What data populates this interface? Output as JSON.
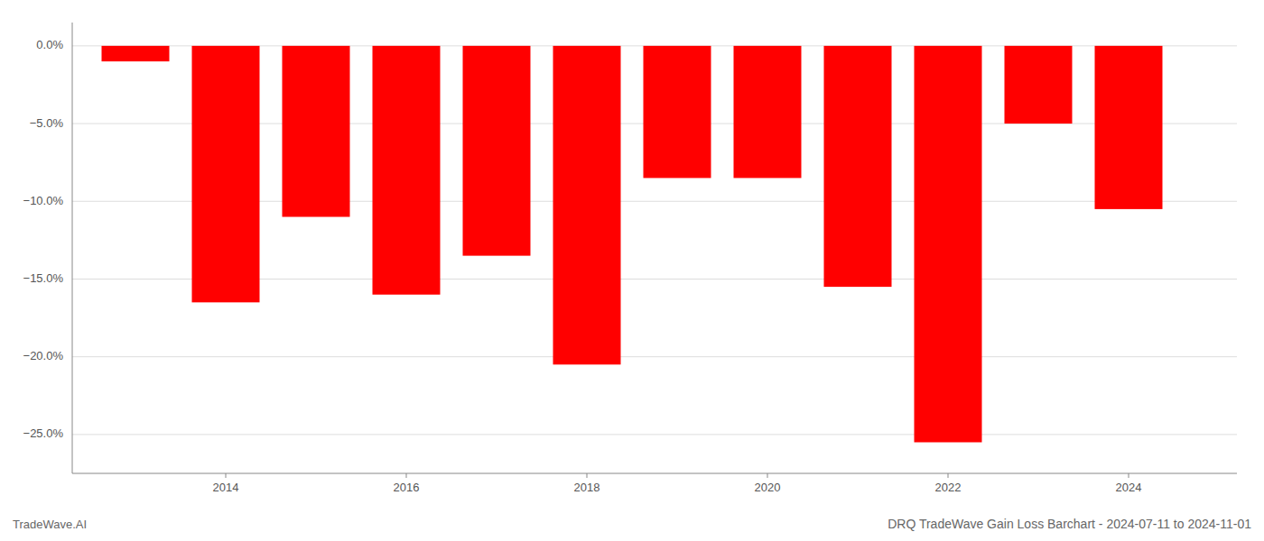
{
  "chart_data": {
    "type": "bar",
    "title": "DRQ TradeWave Gain Loss Barchart - 2024-07-11 to 2024-11-01",
    "annotations": [
      "TradeWave.AI"
    ],
    "x": [
      2013,
      2014,
      2015,
      2016,
      2017,
      2018,
      2019,
      2020,
      2021,
      2022,
      2023,
      2024
    ],
    "values": [
      -1.0,
      -16.5,
      -11.0,
      -16.0,
      -13.5,
      -20.5,
      -8.5,
      -8.5,
      -15.5,
      -25.5,
      -5.0,
      -10.5
    ],
    "color": "#ff0000",
    "xlim": [
      2012.3,
      2025.2
    ],
    "xticks": [
      2014,
      2016,
      2018,
      2020,
      2022,
      2024
    ],
    "ylim": [
      -27.5,
      1.5
    ],
    "yticks": [
      {
        "value": 0.0,
        "label": "0.0%"
      },
      {
        "value": -5.0,
        "label": "−5.0%"
      },
      {
        "value": -10.0,
        "label": "−10.0%"
      },
      {
        "value": -15.0,
        "label": "−15.0%"
      },
      {
        "value": -20.0,
        "label": "−20.0%"
      },
      {
        "value": -25.0,
        "label": "−25.0%"
      }
    ],
    "grid": true
  }
}
